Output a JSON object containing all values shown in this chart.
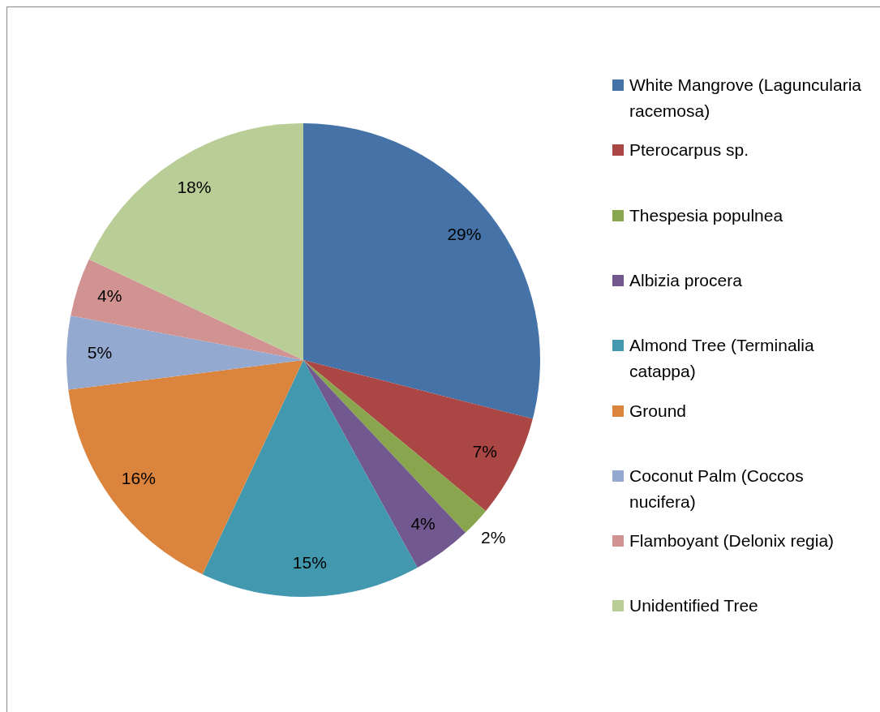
{
  "chart_data": {
    "type": "pie",
    "categories": [
      "White Mangrove (Laguncularia racemosa)",
      "Pterocarpus sp.",
      "Thespesia populnea",
      "Albizia procera",
      "Almond Tree (Terminalia catappa)",
      "Ground",
      "Coconut Palm (Coccos nucifera)",
      "Flamboyant (Delonix regia)",
      "Unidentified Tree"
    ],
    "values": [
      29,
      7,
      2,
      4,
      15,
      16,
      5,
      4,
      18
    ],
    "colors": [
      "#4572a7",
      "#aa4643",
      "#89a54e",
      "#71588f",
      "#4198af",
      "#db843d",
      "#93a9cf",
      "#d19392",
      "#b9cd96"
    ],
    "value_labels": [
      "29%",
      "7%",
      "2%",
      "4%",
      "15%",
      "16%",
      "5%",
      "4%",
      "18%"
    ],
    "legend": "right"
  }
}
